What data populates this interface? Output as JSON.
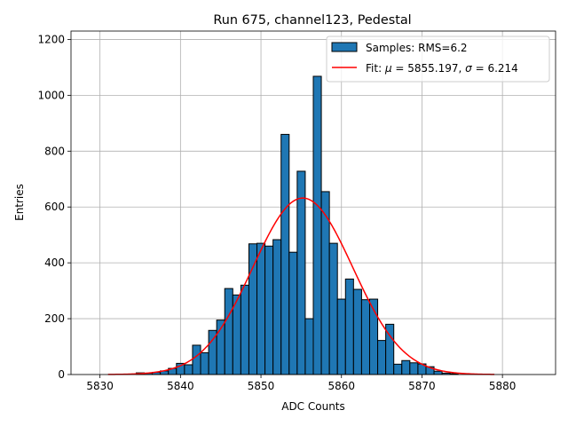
{
  "chart_data": {
    "type": "bar",
    "title": "Run 675, channel123, Pedestal",
    "xlabel": "ADC Counts",
    "ylabel": "Entries",
    "xlim": [
      5826.4,
      5886.6
    ],
    "ylim": [
      0,
      1230
    ],
    "x_ticks": [
      5830,
      5840,
      5850,
      5860,
      5870,
      5880
    ],
    "y_ticks": [
      0,
      200,
      400,
      600,
      800,
      1000,
      1200
    ],
    "grid": true,
    "legend_position": "top-right",
    "bin_width": 1,
    "bar_color": "#1f77b4",
    "fit_color": "#ff0000",
    "histogram": {
      "name": "Samples: RMS=6.2",
      "bins": [
        {
          "x": 5835,
          "count": 6
        },
        {
          "x": 5836,
          "count": 5
        },
        {
          "x": 5837,
          "count": 8
        },
        {
          "x": 5838,
          "count": 13
        },
        {
          "x": 5839,
          "count": 22
        },
        {
          "x": 5840,
          "count": 40
        },
        {
          "x": 5841,
          "count": 35
        },
        {
          "x": 5842,
          "count": 105
        },
        {
          "x": 5843,
          "count": 78
        },
        {
          "x": 5844,
          "count": 158
        },
        {
          "x": 5845,
          "count": 195
        },
        {
          "x": 5846,
          "count": 308
        },
        {
          "x": 5847,
          "count": 285
        },
        {
          "x": 5848,
          "count": 320
        },
        {
          "x": 5849,
          "count": 468
        },
        {
          "x": 5850,
          "count": 470
        },
        {
          "x": 5851,
          "count": 460
        },
        {
          "x": 5852,
          "count": 483
        },
        {
          "x": 5853,
          "count": 860
        },
        {
          "x": 5854,
          "count": 438
        },
        {
          "x": 5855,
          "count": 728
        },
        {
          "x": 5856,
          "count": 200
        },
        {
          "x": 5857,
          "count": 1068
        },
        {
          "x": 5858,
          "count": 655
        },
        {
          "x": 5859,
          "count": 470
        },
        {
          "x": 5860,
          "count": 270
        },
        {
          "x": 5861,
          "count": 342
        },
        {
          "x": 5862,
          "count": 305
        },
        {
          "x": 5863,
          "count": 268
        },
        {
          "x": 5864,
          "count": 270
        },
        {
          "x": 5865,
          "count": 122
        },
        {
          "x": 5866,
          "count": 180
        },
        {
          "x": 5867,
          "count": 37
        },
        {
          "x": 5868,
          "count": 50
        },
        {
          "x": 5869,
          "count": 42
        },
        {
          "x": 5870,
          "count": 38
        },
        {
          "x": 5871,
          "count": 28
        },
        {
          "x": 5872,
          "count": 12
        },
        {
          "x": 5873,
          "count": 5
        },
        {
          "x": 5874,
          "count": 3
        }
      ]
    },
    "fit": {
      "name": "Fit: μ = 5855.197, σ = 6.214",
      "label_prefix": "Fit: ",
      "mu_symbol": "μ",
      "mu_text": " = 5855.197, ",
      "sigma_symbol": "σ",
      "sigma_text": " = 6.214",
      "mu": 5855.197,
      "sigma": 6.214,
      "amplitude": 632,
      "x_range": [
        5831,
        5879
      ]
    }
  }
}
